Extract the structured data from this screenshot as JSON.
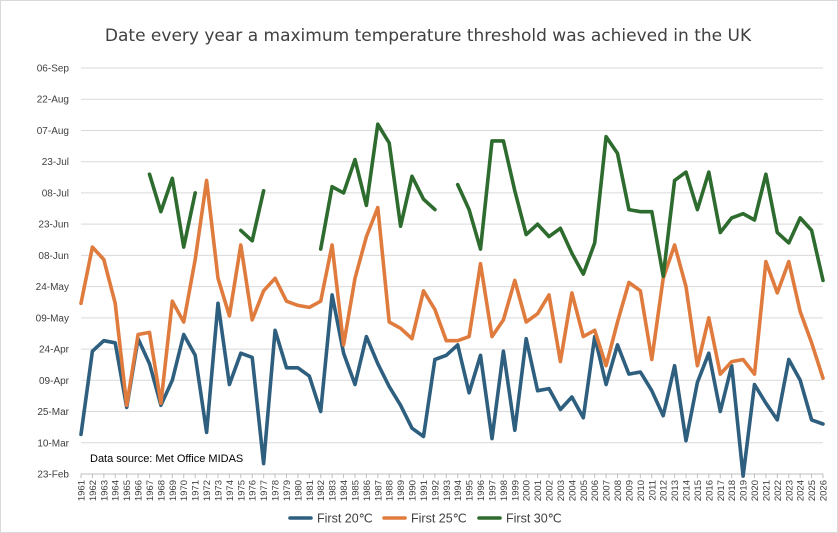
{
  "chart_data": {
    "type": "line",
    "title": "Date every year a maximum temperature threshold was achieved in the UK",
    "annotation": "Data source: Met Office MIDAS",
    "y_tick_labels": [
      "23-Feb",
      "10-Mar",
      "25-Mar",
      "09-Apr",
      "24-Apr",
      "09-May",
      "24-May",
      "08-Jun",
      "23-Jun",
      "08-Jul",
      "23-Jul",
      "07-Aug",
      "22-Aug",
      "06-Sep"
    ],
    "y_axis": {
      "unit": "day of year",
      "min": 54,
      "max": 249,
      "tick_start": 54,
      "tick_step": 15
    },
    "grid": true,
    "legend_position": "bottom",
    "x": [
      1961,
      1962,
      1963,
      1964,
      1965,
      1966,
      1967,
      1968,
      1969,
      1970,
      1971,
      1972,
      1973,
      1974,
      1975,
      1976,
      1977,
      1978,
      1979,
      1980,
      1981,
      1982,
      1983,
      1984,
      1985,
      1986,
      1987,
      1988,
      1989,
      1990,
      1991,
      1992,
      1993,
      1994,
      1995,
      1996,
      1997,
      1998,
      1999,
      2000,
      2001,
      2002,
      2003,
      2004,
      2005,
      2006,
      2007,
      2008,
      2009,
      2010,
      2011,
      2012,
      2013,
      2014,
      2015,
      2016,
      2017,
      2018,
      2019,
      2020,
      2021,
      2022,
      2023,
      2024,
      2025,
      2026
    ],
    "series": [
      {
        "name": "First 20℃",
        "color": "#2e5f7f",
        "values": [
          73,
          113,
          118,
          117,
          86,
          119,
          107,
          87,
          99,
          121,
          111,
          74,
          136,
          97,
          112,
          110,
          59,
          123,
          105,
          105,
          101,
          84,
          140,
          112,
          97,
          120,
          107,
          96,
          87,
          76,
          72,
          109,
          111,
          116,
          93,
          111,
          71,
          113,
          75,
          119,
          94,
          95,
          85,
          91,
          81,
          120,
          97,
          116,
          102,
          103,
          94,
          82,
          106,
          70,
          98,
          112,
          84,
          106,
          53,
          97,
          88,
          80,
          109,
          99,
          80,
          78
        ],
        "gaps": []
      },
      {
        "name": "First 25℃",
        "color": "#e07b3e",
        "values": [
          136,
          163,
          157,
          136,
          87,
          121,
          122,
          88,
          137,
          127,
          157,
          195,
          148,
          130,
          164,
          128,
          142,
          148,
          137,
          135,
          134,
          137,
          164,
          116,
          148,
          168,
          182,
          127,
          124,
          119,
          142,
          133,
          118,
          118,
          120,
          155,
          120,
          128,
          147,
          127,
          131,
          140,
          108,
          141,
          120,
          123,
          106,
          127,
          146,
          142,
          109,
          148,
          164,
          144,
          106,
          129,
          102,
          108,
          109,
          102,
          156,
          141,
          156,
          132,
          117,
          100
        ],
        "gaps": []
      },
      {
        "name": "First 30℃",
        "color": "#2e6b2e",
        "values": [
          null,
          null,
          null,
          null,
          null,
          null,
          198,
          180,
          196,
          163,
          189,
          null,
          null,
          null,
          171,
          166,
          190,
          null,
          null,
          null,
          null,
          162,
          192,
          189,
          205,
          183,
          222,
          213,
          173,
          197,
          186,
          181,
          null,
          193,
          181,
          162,
          214,
          214,
          190,
          169,
          174,
          168,
          172,
          160,
          150,
          165,
          216,
          208,
          181,
          180,
          180,
          149,
          195,
          199,
          181,
          199,
          170,
          177,
          179,
          176,
          198,
          170,
          165,
          177,
          171,
          147
        ],
        "gaps": [
          [
            1967,
            1971
          ],
          [
            1975,
            1977
          ],
          [
            1982,
            1992
          ],
          [
            1994,
            2026
          ]
        ]
      }
    ]
  }
}
